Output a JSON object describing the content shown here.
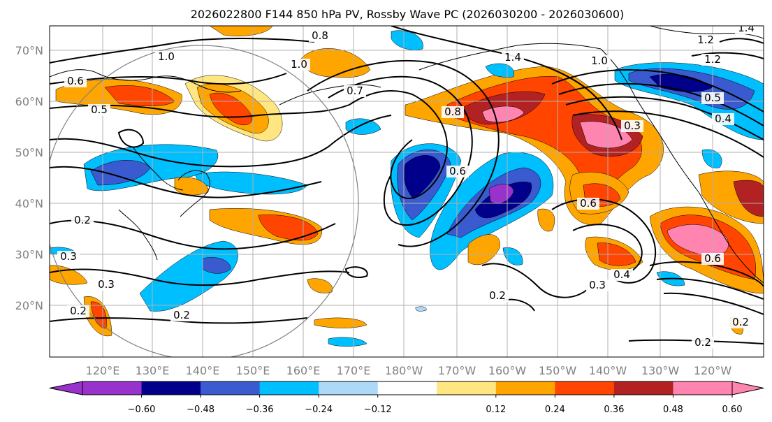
{
  "colors": {
    "negative": [
      "#9932cc",
      "#00008b",
      "#3a5bd0",
      "#00bfff",
      "#add8f8"
    ],
    "neutral": "#ffffff",
    "positive": [
      "#ffe680",
      "#ffa500",
      "#ff4500",
      "#b22222",
      "#ff85b0"
    ],
    "contour": "#000000",
    "grid": "#b0b0b0"
  },
  "chart_data": {
    "type": "contour-map",
    "title": "2026022800 F144 850 hPa PV, Rossby Wave PC (2026030200 - 2026030600)",
    "x_ticks": [
      "120°E",
      "130°E",
      "140°E",
      "150°E",
      "160°E",
      "170°E",
      "180°W",
      "170°W",
      "160°W",
      "150°W",
      "140°W",
      "130°W",
      "120°W"
    ],
    "y_ticks": [
      "70°N",
      "60°N",
      "50°N",
      "40°N",
      "30°N",
      "20°N"
    ],
    "colorbar": {
      "ticks": [
        "−0.60",
        "−0.48",
        "−0.36",
        "−0.24",
        "−0.12",
        "0.12",
        "0.24",
        "0.36",
        "0.48",
        "0.60"
      ],
      "extend": "both"
    },
    "contour_labels": [
      "0.8",
      "1.0",
      "1.0",
      "0.6",
      "0.5",
      "0.7",
      "0.8",
      "1.4",
      "1.0",
      "1.2",
      "1.2",
      "1.4",
      "0.5",
      "0.4",
      "0.6",
      "0.6",
      "0.4",
      "0.3",
      "0.2",
      "0.2",
      "0.3",
      "0.3",
      "0.2",
      "0.2",
      "0.2",
      "0.2",
      "0.6",
      "0.3"
    ],
    "grid": true
  }
}
